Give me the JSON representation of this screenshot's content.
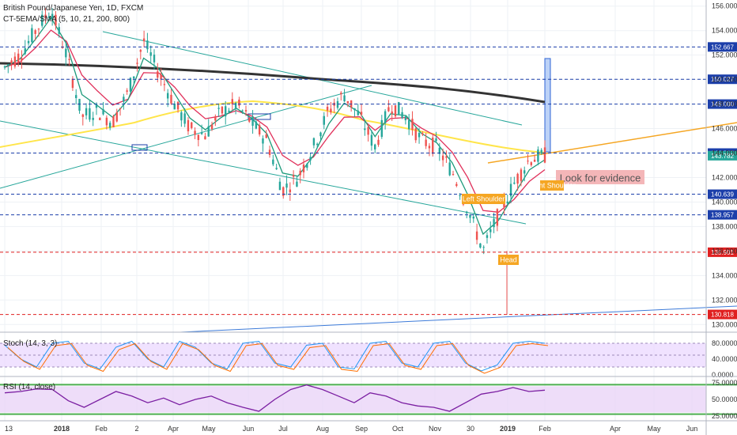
{
  "header": {
    "symbol_title": "British Pound/Japanese Yen, 1D, FXCM",
    "indicator_title": "CT-5EMA/SMA (5, 10, 21, 200, 800)"
  },
  "colors": {
    "price_axis_label_bg": "#1c3faa",
    "red_level": "#e02020",
    "ema_fast": "#1c9a7a",
    "ema_slow": "#e0305a",
    "sma_yellow": "#ffe54a",
    "sma_dark": "#333333",
    "neckline": "#f5a623",
    "channel": "#26a69a",
    "stoch_bg": "#e9d5ff",
    "rsi_bg": "#ead5f7",
    "rsi_line": "#7b1fa2"
  },
  "chart_data": [
    {
      "type": "candlestick",
      "title": "British Pound/Japanese Yen, 1D, FXCM",
      "ylim": [
        129.5,
        156.5
      ],
      "x_ticks": [
        "13",
        "2018",
        "Feb",
        "2",
        "Apr",
        "May",
        "Jun",
        "Jul",
        "Aug",
        "Sep",
        "Oct",
        "Nov",
        "30",
        "2019",
        "Feb",
        "Apr",
        "May",
        "Jun"
      ],
      "y_ticks": [
        130.0,
        132.0,
        134.0,
        136.0,
        138.0,
        140.0,
        142.0,
        144.0,
        146.0,
        148.0,
        150.0,
        152.0,
        154.0,
        156.0
      ],
      "close_path": [
        {
          "x": "Dec 13 2017",
          "y": 151.0
        },
        {
          "x": "Jan 2018",
          "y": 152.0
        },
        {
          "x": "Jan 20",
          "y": 154.0
        },
        {
          "x": "Feb 1 2018",
          "y": 155.8
        },
        {
          "x": "Feb 10",
          "y": 152.0
        },
        {
          "x": "Mar 1",
          "y": 147.0
        },
        {
          "x": "Mar 15",
          "y": 147.5
        },
        {
          "x": "Mar 24",
          "y": 146.5
        },
        {
          "x": "Apr 1",
          "y": 149.0
        },
        {
          "x": "Apr 20",
          "y": 153.2
        },
        {
          "x": "May 1",
          "y": 150.5
        },
        {
          "x": "May 15",
          "y": 148.0
        },
        {
          "x": "Jun 1",
          "y": 146.0
        },
        {
          "x": "Jun 10",
          "y": 145.5
        },
        {
          "x": "Jun 25",
          "y": 147.3
        },
        {
          "x": "Jul 1",
          "y": 148.0
        },
        {
          "x": "Jul 15",
          "y": 146.5
        },
        {
          "x": "Aug 1",
          "y": 145.0
        },
        {
          "x": "Aug 15",
          "y": 141.0
        },
        {
          "x": "Aug 25",
          "y": 142.0
        },
        {
          "x": "Sep 1",
          "y": 144.5
        },
        {
          "x": "Sep 15",
          "y": 147.5
        },
        {
          "x": "Sep 25",
          "y": 148.8
        },
        {
          "x": "Oct 10",
          "y": 147.0
        },
        {
          "x": "Oct 25",
          "y": 144.5
        },
        {
          "x": "Nov 1",
          "y": 148.0
        },
        {
          "x": "Nov 10",
          "y": 147.0
        },
        {
          "x": "Nov 20",
          "y": 145.0
        },
        {
          "x": "Dec 1",
          "y": 144.5
        },
        {
          "x": "Dec 15",
          "y": 142.5
        },
        {
          "x": "Dec 25",
          "y": 139.5
        },
        {
          "x": "Jan 3 2019",
          "y": 136.0
        },
        {
          "x": "Jan 10",
          "y": 139.0
        },
        {
          "x": "Jan 20",
          "y": 141.5
        },
        {
          "x": "Jan 28",
          "y": 143.5
        },
        {
          "x": "Feb 1 2019",
          "y": 143.8
        }
      ],
      "series": [
        {
          "name": "CT-5EMA/SMA (5, 10, 21, 200, 800)",
          "style": "ema",
          "color": "#1c9a7a"
        },
        {
          "name": "CT-5EMA/SMA (5, 10, 21, 200, 800)",
          "style": "ema",
          "color": "#e0305a"
        },
        {
          "name": "CT-5EMA/SMA (5, 10, 21, 200, 800)",
          "style": "sma",
          "color": "#ffe54a"
        },
        {
          "name": "CT-5EMA/SMA (5, 10, 21, 200, 800)",
          "style": "sma",
          "color": "#333333"
        }
      ],
      "price_levels": [
        {
          "value": "152.667",
          "y": 152.667,
          "color": "#1c3faa",
          "style": "dashed"
        },
        {
          "value": "150.027",
          "y": 150.027,
          "color": "#1c3faa",
          "style": "dashed"
        },
        {
          "value": "148.000",
          "y": 148.0,
          "color": "#1c3faa",
          "style": "dashed"
        },
        {
          "value": "144.000",
          "y": 144.0,
          "color": "#1c3faa",
          "style": "dashed"
        },
        {
          "value": "143.782",
          "y": 143.782,
          "color": "#26a69a",
          "style": "current"
        },
        {
          "value": "140.639",
          "y": 140.639,
          "color": "#1c3faa",
          "style": "dashed"
        },
        {
          "value": "138.957",
          "y": 138.957,
          "color": "#1c3faa",
          "style": "dashed"
        },
        {
          "value": "135.901",
          "y": 135.901,
          "color": "#e02020",
          "style": "dashed"
        },
        {
          "value": "130.818",
          "y": 130.818,
          "color": "#e02020",
          "style": "dashed"
        }
      ],
      "annotations": [
        {
          "text": "Look for evidence",
          "x": "Feb 2019",
          "y": 142.6,
          "style": "pink-box"
        },
        {
          "text": "Left Shoulder",
          "x": "Dec 25",
          "y": 141.0,
          "style": "orange-box"
        },
        {
          "text": "Right Shoulder",
          "x": "Jan 28",
          "y": 142.0,
          "style": "orange-box"
        },
        {
          "text": "Head",
          "x": "Jan 3 2019",
          "y": 135.4,
          "style": "orange-box"
        }
      ]
    },
    {
      "type": "line",
      "title": "Stoch (14, 3, 3)",
      "ylim": [
        0,
        100
      ],
      "y_ticks": [
        "80.0000",
        "40.0000",
        "0.0000"
      ],
      "bands": [
        20,
        80
      ],
      "values": [
        75,
        40,
        20,
        80,
        85,
        30,
        15,
        70,
        85,
        40,
        20,
        85,
        70,
        30,
        15,
        80,
        85,
        30,
        20,
        75,
        80,
        20,
        15,
        80,
        85,
        30,
        20,
        80,
        85,
        30,
        10,
        25,
        80,
        85,
        80
      ]
    },
    {
      "type": "line",
      "title": "RSI (14, close)",
      "ylim": [
        20,
        80
      ],
      "y_ticks": [
        "75.0000",
        "50.0000",
        "25.0000"
      ],
      "bands": [
        30,
        70
      ],
      "values": [
        60,
        62,
        66,
        65,
        48,
        38,
        50,
        62,
        55,
        45,
        52,
        42,
        50,
        55,
        45,
        38,
        32,
        50,
        65,
        72,
        65,
        55,
        45,
        60,
        55,
        45,
        40,
        38,
        32,
        45,
        58,
        62,
        68,
        62,
        64
      ]
    }
  ]
}
